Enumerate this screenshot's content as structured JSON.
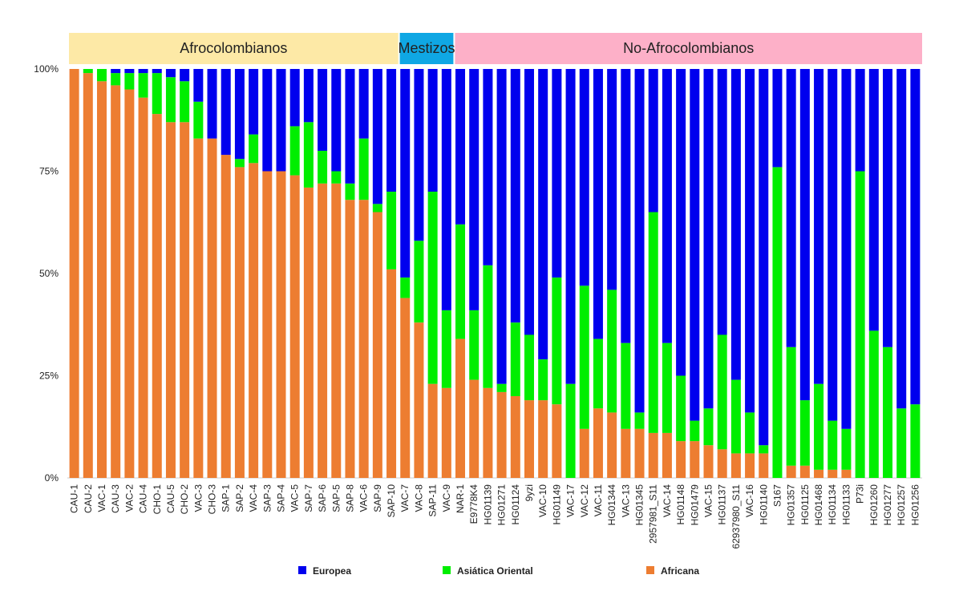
{
  "chart_data": {
    "type": "bar",
    "stacked": true,
    "percent": true,
    "ylim": [
      0,
      100
    ],
    "yticks": [
      "0%",
      "25%",
      "50%",
      "75%",
      "100%"
    ],
    "groups": [
      {
        "label": "Afrocolombianos",
        "count": 24,
        "color": "#fde9a6"
      },
      {
        "label": "Mestizos",
        "count": 4,
        "color": "#0fa7e4"
      },
      {
        "label": "No-Afrocolombianos",
        "count": 34,
        "color": "#fdb0c8"
      }
    ],
    "categories": [
      "CAU-1",
      "CAU-2",
      "VAC-1",
      "CAU-3",
      "VAC-2",
      "CAU-4",
      "CHO-1",
      "CAU-5",
      "CHO-2",
      "VAC-3",
      "CHO-3",
      "SAP-1",
      "SAP-2",
      "VAC-4",
      "SAP-3",
      "SAP-4",
      "VAC-5",
      "SAP-7",
      "SAP-6",
      "SAP-5",
      "SAP-8",
      "VAC-6",
      "SAP-9",
      "SAP-10",
      "VAC-7",
      "VAC-8",
      "SAP-11",
      "VAC-9",
      "NAR-1",
      "E9778K4",
      "HG01139",
      "HG01271",
      "HG01124",
      "9yzi",
      "VAC-10",
      "HG01149",
      "VAC-17",
      "VAC-12",
      "VAC-11",
      "HG01344",
      "VAC-13",
      "HG01345",
      "2957981_S11",
      "VAC-14",
      "HG01148",
      "HG01479",
      "VAC-15",
      "HG01137",
      "62937980_S11",
      "VAC-16",
      "HG01140",
      "S167",
      "HG01357",
      "HG01125",
      "HG01468",
      "HG01134",
      "HG01133",
      "P73i",
      "HG01260",
      "HG01277",
      "HG01257",
      "HG01256"
    ],
    "series": [
      {
        "name": "Africana",
        "color": "#ed7d31",
        "values": [
          100,
          99,
          97,
          96,
          95,
          93,
          89,
          87,
          87,
          83,
          83,
          79,
          76,
          77,
          75,
          75,
          74,
          71,
          72,
          72,
          68,
          68,
          65,
          51,
          44,
          38,
          23,
          22,
          34,
          24,
          22,
          21,
          20,
          19,
          19,
          18,
          0,
          12,
          17,
          16,
          12,
          12,
          11,
          11,
          9,
          9,
          8,
          7,
          6,
          6,
          6,
          0,
          3,
          3,
          2,
          2,
          2,
          0,
          0,
          0,
          0,
          0
        ]
      },
      {
        "name": "Asiática Oriental",
        "color": "#00ee00",
        "values": [
          0,
          1,
          3,
          3,
          4,
          6,
          10,
          11,
          10,
          9,
          0,
          0,
          2,
          7,
          0,
          0,
          12,
          16,
          8,
          3,
          4,
          15,
          2,
          19,
          5,
          20,
          47,
          19,
          28,
          17,
          30,
          2,
          18,
          16,
          10,
          31,
          23,
          35,
          17,
          30,
          21,
          4,
          54,
          22,
          16,
          5,
          9,
          28,
          18,
          10,
          2,
          76,
          29,
          16,
          21,
          12,
          10,
          75,
          36,
          32,
          17,
          18
        ]
      },
      {
        "name": "Europea",
        "color": "#0000ee",
        "values": [
          0,
          0,
          0,
          1,
          1,
          1,
          1,
          2,
          3,
          8,
          17,
          21,
          22,
          16,
          25,
          25,
          14,
          13,
          20,
          25,
          28,
          17,
          33,
          30,
          51,
          42,
          30,
          59,
          38,
          59,
          48,
          77,
          62,
          65,
          71,
          51,
          77,
          53,
          66,
          54,
          67,
          84,
          35,
          67,
          75,
          86,
          83,
          65,
          76,
          84,
          92,
          24,
          68,
          81,
          77,
          86,
          88,
          25,
          64,
          68,
          83,
          82
        ]
      }
    ],
    "legend_order": [
      "Europea",
      "Asiática Oriental",
      "Africana"
    ],
    "legend_position": "bottom"
  }
}
